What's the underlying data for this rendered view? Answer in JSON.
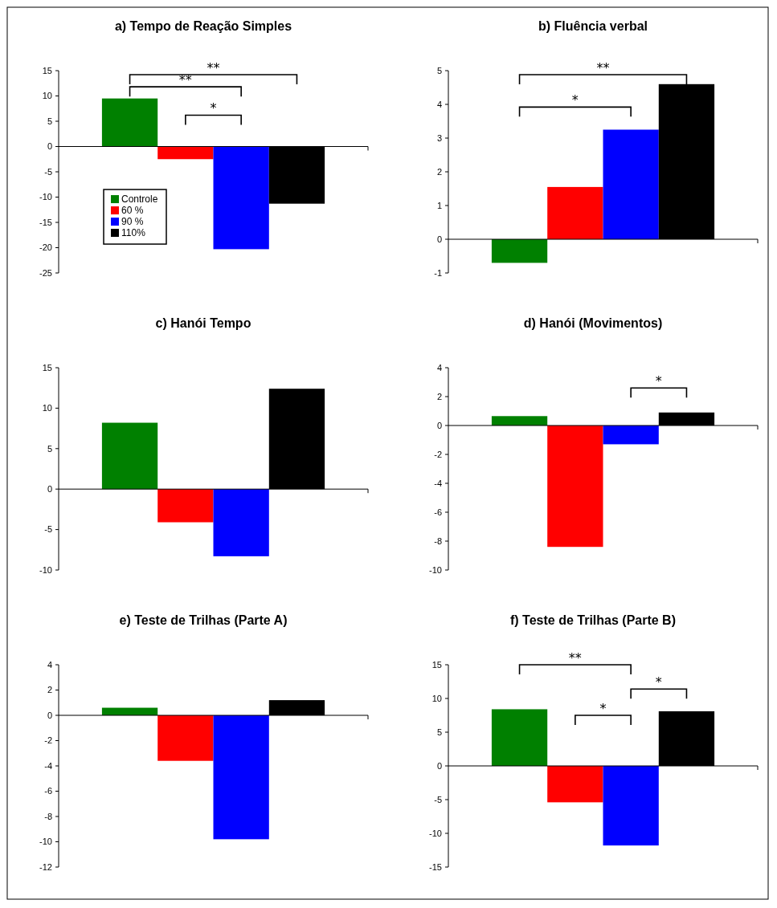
{
  "chart_data": [
    {
      "type": "bar",
      "title": "a) Tempo de Reação Simples",
      "categories": [
        null
      ],
      "series": [
        {
          "name": "Controle",
          "color": "#008000",
          "values": [
            9.5
          ]
        },
        {
          "name": "60 %",
          "color": "#ff0000",
          "values": [
            -2.5
          ]
        },
        {
          "name": "90 %",
          "color": "#0000ff",
          "values": [
            -20.3
          ]
        },
        {
          "name": "110%",
          "color": "#000000",
          "values": [
            -11.3
          ]
        }
      ],
      "ylim": [
        -25,
        15
      ],
      "yticks": [
        -25,
        -20,
        -15,
        -10,
        -5,
        0,
        5,
        10,
        15
      ],
      "legend": "left",
      "annotations": [
        "**",
        "**",
        "*"
      ]
    },
    {
      "type": "bar",
      "title": "b) Fluência verbal",
      "categories": [
        null
      ],
      "series": [
        {
          "color": "#008000",
          "values": [
            -0.7
          ]
        },
        {
          "color": "#ff0000",
          "values": [
            1.55
          ]
        },
        {
          "color": "#0000ff",
          "values": [
            3.25
          ]
        },
        {
          "color": "#000000",
          "values": [
            4.6
          ]
        }
      ],
      "ylim": [
        -1,
        5
      ],
      "yticks": [
        -1,
        0,
        1,
        2,
        3,
        4,
        5
      ],
      "annotations": [
        "**",
        "*"
      ]
    },
    {
      "type": "bar",
      "title": "c) Hanói Tempo",
      "categories": [
        null
      ],
      "series": [
        {
          "color": "#008000",
          "values": [
            8.2
          ]
        },
        {
          "color": "#ff0000",
          "values": [
            -4.1
          ]
        },
        {
          "color": "#0000ff",
          "values": [
            -8.3
          ]
        },
        {
          "color": "#000000",
          "values": [
            12.4
          ]
        }
      ],
      "ylim": [
        -10,
        15
      ],
      "yticks": [
        -10,
        -5,
        0,
        5,
        10,
        15
      ]
    },
    {
      "type": "bar",
      "title": "d) Hanói (Movimentos)",
      "categories": [
        null
      ],
      "series": [
        {
          "color": "#008000",
          "values": [
            0.65
          ]
        },
        {
          "color": "#ff0000",
          "values": [
            -8.4
          ]
        },
        {
          "color": "#0000ff",
          "values": [
            -1.3
          ]
        },
        {
          "color": "#000000",
          "values": [
            0.9
          ]
        }
      ],
      "ylim": [
        -10,
        4
      ],
      "yticks": [
        -10,
        -8,
        -6,
        -4,
        -2,
        0,
        2,
        4
      ],
      "annotations": [
        "*"
      ]
    },
    {
      "type": "bar",
      "title": "e) Teste de Trilhas (Parte A)",
      "categories": [
        null
      ],
      "series": [
        {
          "color": "#008000",
          "values": [
            0.6
          ]
        },
        {
          "color": "#ff0000",
          "values": [
            -3.6
          ]
        },
        {
          "color": "#0000ff",
          "values": [
            -9.8
          ]
        },
        {
          "color": "#000000",
          "values": [
            1.2
          ]
        }
      ],
      "ylim": [
        -12,
        4
      ],
      "yticks": [
        -12,
        -10,
        -8,
        -6,
        -4,
        -2,
        0,
        2,
        4
      ]
    },
    {
      "type": "bar",
      "title": "f) Teste de Trilhas (Parte B)",
      "categories": [
        null
      ],
      "series": [
        {
          "color": "#008000",
          "values": [
            8.4
          ]
        },
        {
          "color": "#ff0000",
          "values": [
            -5.4
          ]
        },
        {
          "color": "#0000ff",
          "values": [
            -11.8
          ]
        },
        {
          "color": "#000000",
          "values": [
            8.1
          ]
        }
      ],
      "ylim": [
        -15,
        15
      ],
      "yticks": [
        -15,
        -10,
        -5,
        0,
        5,
        10,
        15
      ],
      "annotations": [
        "**",
        "*",
        "*"
      ]
    }
  ]
}
